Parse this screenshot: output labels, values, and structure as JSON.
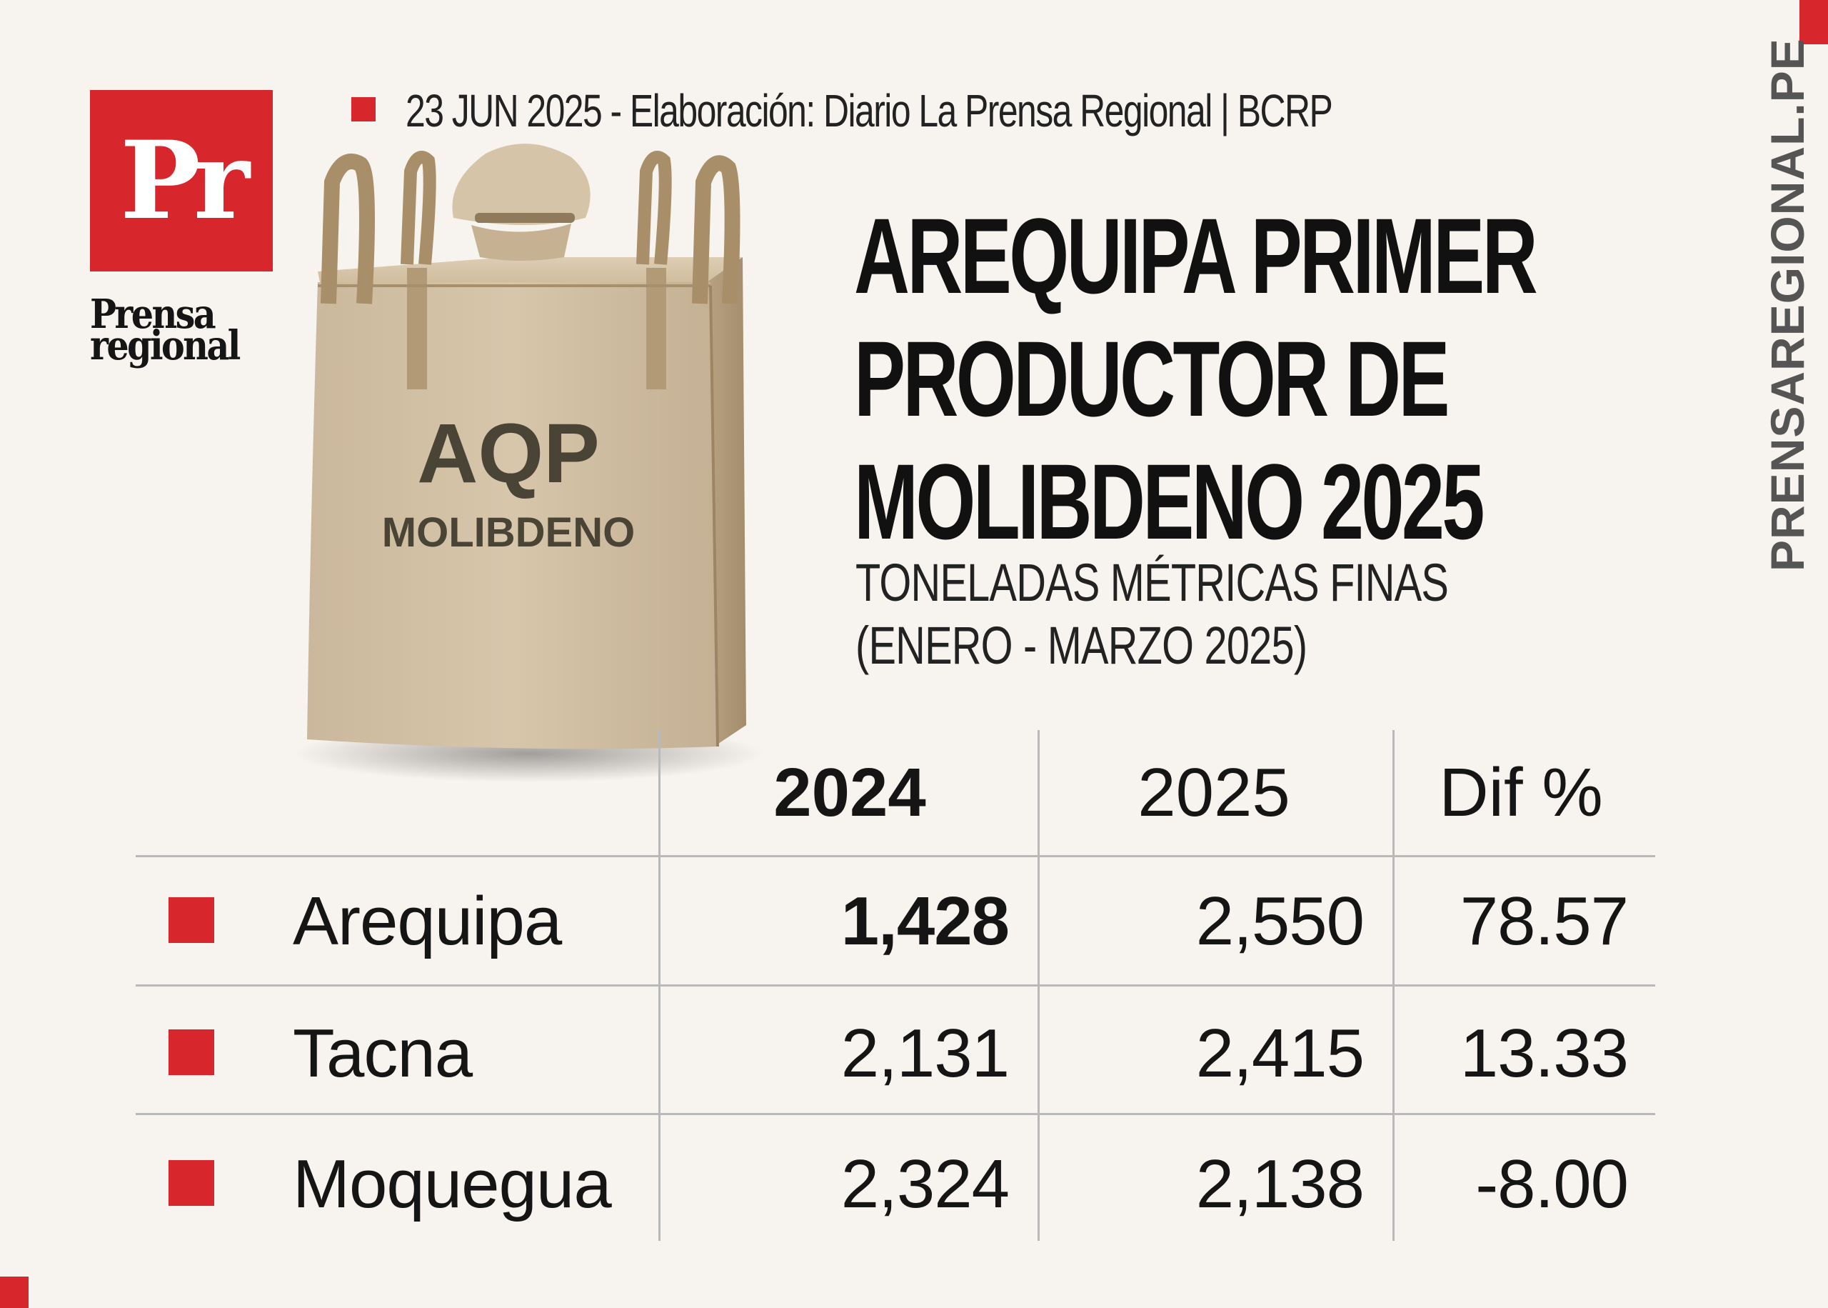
{
  "brand": {
    "logo_mark": "Pr",
    "logo_word_line1": "Prensa",
    "logo_word_line2": "regional",
    "site": "PRENSAREGIONAL.PE",
    "accent_color": "#d8262d"
  },
  "source_line": "23 JUN 2025 -  Elaboración: Diario La Prensa Regional | BCRP",
  "title_lines": [
    "AREQUIPA PRIMER",
    "PRODUCTOR DE",
    "MOLIBDENO 2025"
  ],
  "subtitle_lines": [
    "TONELADAS MÉTRICAS FINAS",
    "(ENERO - MARZO 2025)"
  ],
  "bag": {
    "label_main": "AQP",
    "label_sub": "MOLIBDENO"
  },
  "table": {
    "headers": [
      "2024",
      "2025",
      "Dif %"
    ],
    "rows": [
      {
        "region": "Arequipa",
        "v2024": "1,428",
        "v2025": "2,550",
        "dif": "78.57"
      },
      {
        "region": "Tacna",
        "v2024": "2,131",
        "v2025": "2,415",
        "dif": "13.33"
      },
      {
        "region": "Moquegua",
        "v2024": "2,324",
        "v2025": "2,138",
        "dif": "-8.00"
      }
    ]
  }
}
